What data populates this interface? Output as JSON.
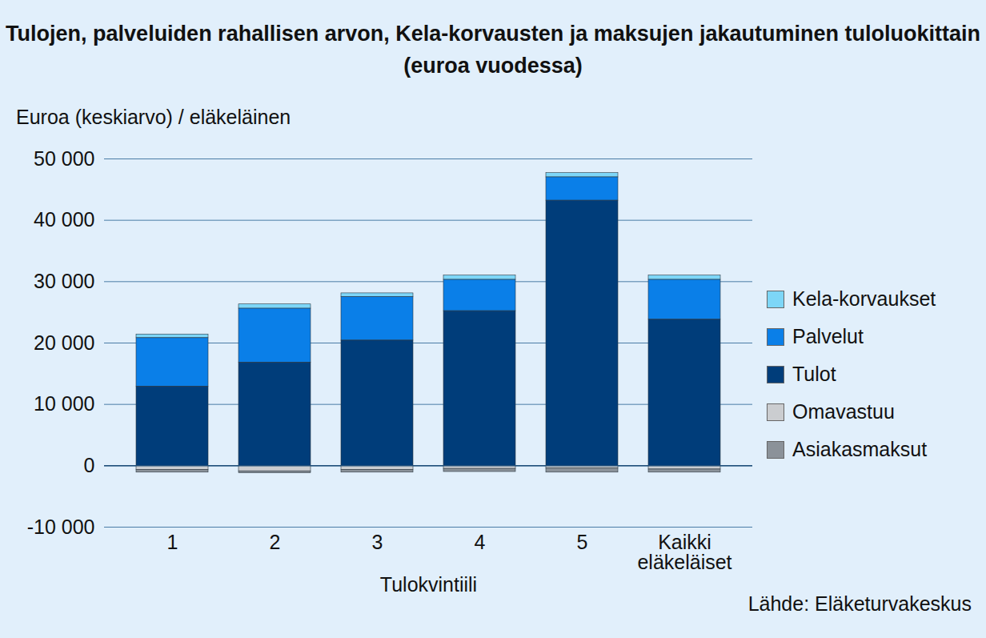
{
  "chart_data": {
    "type": "bar",
    "title": "Tulojen, palveluiden rahallisen arvon, Kela-korvausten ja maksujen jakautuminen tuloluokittain (euroa vuodessa)",
    "y_label": "Euroa (keskiarvo) / eläkeläinen",
    "x_label": "Tulokvintiili",
    "source": "Lähde: Eläketurvakeskus",
    "categories": [
      "1",
      "2",
      "3",
      "4",
      "5",
      "Kaikki eläkeläiset"
    ],
    "series": [
      {
        "name": "Kela-korvaukset",
        "color": "#7dd6f7",
        "values": [
          600,
          700,
          600,
          700,
          700,
          700
        ]
      },
      {
        "name": "Palvelut",
        "color": "#0a7fe8",
        "values": [
          7900,
          8800,
          7100,
          5100,
          3800,
          6500
        ]
      },
      {
        "name": "Tulot",
        "color": "#003d7a",
        "values": [
          12900,
          16800,
          20400,
          25200,
          43200,
          23800
        ]
      },
      {
        "name": "Omavastuu",
        "color": "#cbcdd0",
        "values": [
          -700,
          -900,
          -700,
          -500,
          -400,
          -600
        ]
      },
      {
        "name": "Asiakasmaksut",
        "color": "#8b9299",
        "values": [
          -400,
          -300,
          -400,
          -500,
          -700,
          -500
        ]
      }
    ],
    "stacked": true,
    "ylim": [
      -10000,
      50000
    ],
    "yticks": [
      {
        "value": -10000,
        "label": "-10 000"
      },
      0,
      {
        "value": 10000,
        "label": "10 000"
      },
      {
        "value": 20000,
        "label": "20 000"
      },
      {
        "value": 30000,
        "label": "30 000"
      },
      {
        "value": 40000,
        "label": "40 000"
      },
      {
        "value": 50000,
        "label": "50 000"
      }
    ],
    "grid": true,
    "legend": "right"
  }
}
